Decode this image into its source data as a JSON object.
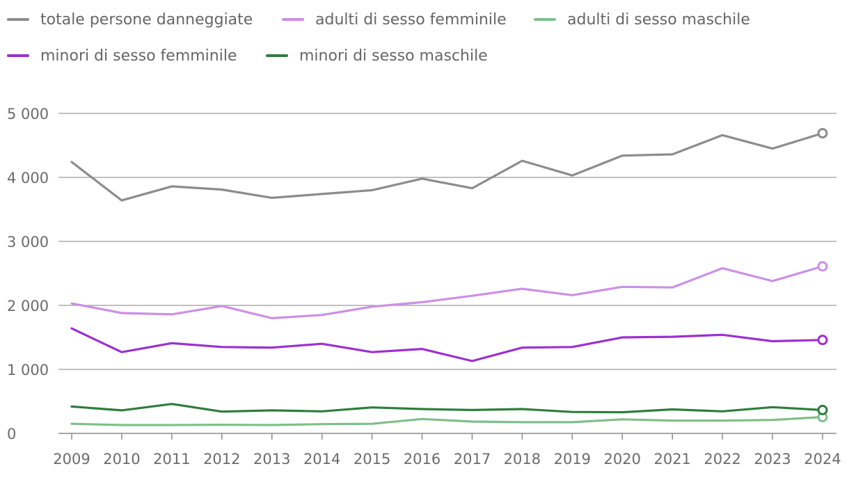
{
  "chart_data": {
    "type": "line",
    "title": "",
    "xlabel": "",
    "ylabel": "",
    "x": [
      2009,
      2010,
      2011,
      2012,
      2013,
      2014,
      2015,
      2016,
      2017,
      2018,
      2019,
      2020,
      2021,
      2022,
      2023,
      2024
    ],
    "x_tick_labels": [
      "2009",
      "2010",
      "2011",
      "2012",
      "2013",
      "2014",
      "2015",
      "2016",
      "2017",
      "2018",
      "2019",
      "2020",
      "2021",
      "2022",
      "2023",
      "2024"
    ],
    "ylim": [
      0,
      5000
    ],
    "y_ticks": [
      0,
      1000,
      2000,
      3000,
      4000,
      5000
    ],
    "y_tick_labels": [
      "0",
      "1 000",
      "2 000",
      "3 000",
      "4 000",
      "5 000"
    ],
    "grid": true,
    "legend_position": "top-left",
    "series": [
      {
        "name": "totale persone danneggiate",
        "color": "#8c8c8c",
        "values": [
          4240,
          3640,
          3860,
          3810,
          3680,
          3740,
          3800,
          3980,
          3830,
          4260,
          4030,
          4340,
          4360,
          4660,
          4450,
          4690
        ]
      },
      {
        "name": "adulti di sesso femminile",
        "color": "#cc8fe6",
        "values": [
          2030,
          1880,
          1860,
          1990,
          1800,
          1850,
          1980,
          2050,
          2150,
          2260,
          2160,
          2290,
          2280,
          2580,
          2380,
          2610
        ]
      },
      {
        "name": "adulti di sesso maschile",
        "color": "#7fbf8a",
        "values": [
          150,
          130,
          130,
          135,
          130,
          145,
          150,
          225,
          185,
          175,
          175,
          220,
          200,
          200,
          210,
          255
        ]
      },
      {
        "name": "minori di sesso femminile",
        "color": "#9b30d0",
        "values": [
          1640,
          1270,
          1410,
          1350,
          1340,
          1400,
          1270,
          1320,
          1130,
          1340,
          1350,
          1500,
          1510,
          1540,
          1440,
          1460
        ]
      },
      {
        "name": "minori di sesso maschile",
        "color": "#2e7d3e",
        "values": [
          420,
          360,
          460,
          340,
          360,
          345,
          405,
          380,
          365,
          380,
          335,
          330,
          375,
          345,
          410,
          365
        ]
      }
    ]
  }
}
